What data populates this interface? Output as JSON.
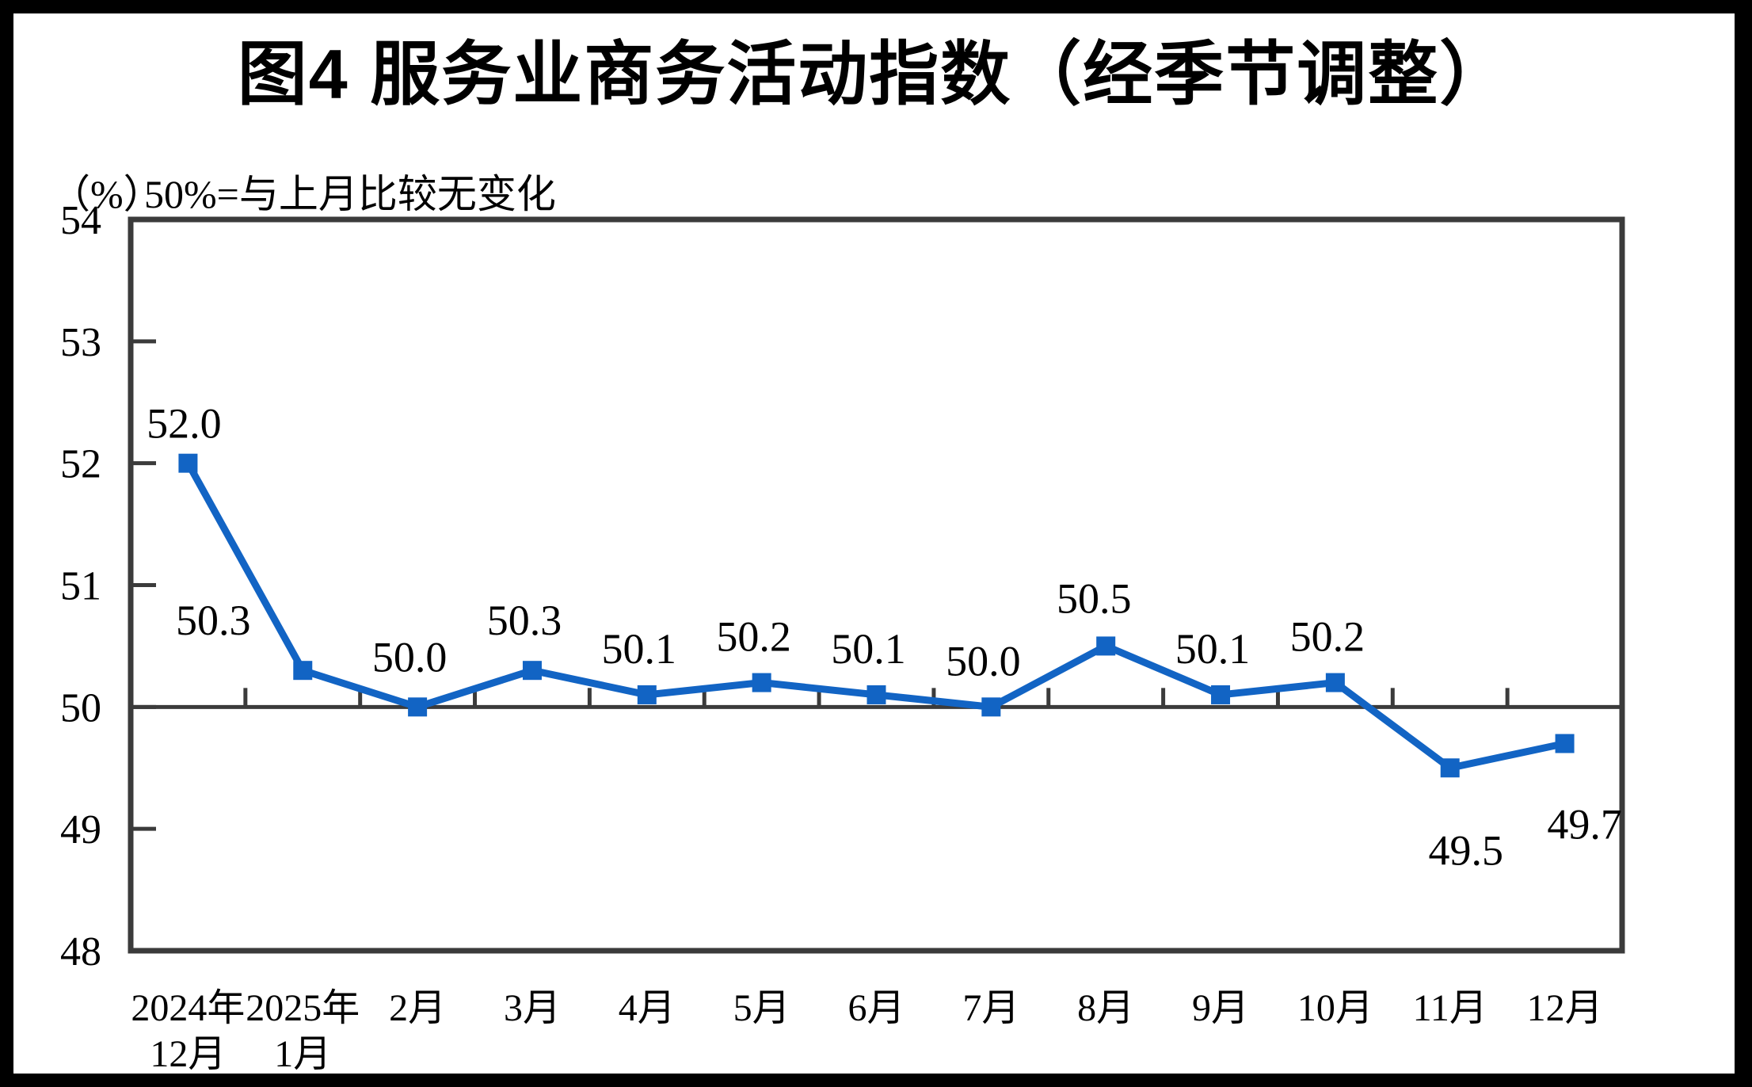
{
  "figure": {
    "title": "图4  服务业商务活动指数（经季节调整）",
    "unit_label": "（%）",
    "subtitle": "50%=与上月比较无变化"
  },
  "chart_data": {
    "type": "line",
    "title": "图4 服务业商务活动指数（经季节调整）",
    "unit": "（%）",
    "note": "50%=与上月比较无变化",
    "categories": [
      "2024年12月",
      "2025年1月",
      "2月",
      "3月",
      "4月",
      "5月",
      "6月",
      "7月",
      "8月",
      "9月",
      "10月",
      "11月",
      "12月"
    ],
    "tick_label_lines": [
      [
        "2024年",
        "12月"
      ],
      [
        "2025年",
        "1月"
      ],
      [
        "2月"
      ],
      [
        "3月"
      ],
      [
        "4月"
      ],
      [
        "5月"
      ],
      [
        "6月"
      ],
      [
        "7月"
      ],
      [
        "8月"
      ],
      [
        "9月"
      ],
      [
        "10月"
      ],
      [
        "11月"
      ],
      [
        "12月"
      ]
    ],
    "values": [
      52.0,
      50.3,
      50.0,
      50.3,
      50.1,
      50.2,
      50.1,
      50.0,
      50.5,
      50.1,
      50.2,
      49.5,
      49.7
    ],
    "data_labels": [
      "52.0",
      "50.3",
      "50.0",
      "50.3",
      "50.1",
      "50.2",
      "50.1",
      "50.0",
      "50.5",
      "50.1",
      "50.2",
      "49.5",
      "49.7"
    ],
    "ylim": [
      48,
      54
    ],
    "yticks": [
      48,
      49,
      50,
      51,
      52,
      53,
      54
    ],
    "reference_line": 50,
    "grid": false,
    "legend": "none",
    "marker": "square",
    "colors": {
      "series": "#1264C4",
      "axis": "#3B3B3B",
      "text": "#000000"
    }
  }
}
